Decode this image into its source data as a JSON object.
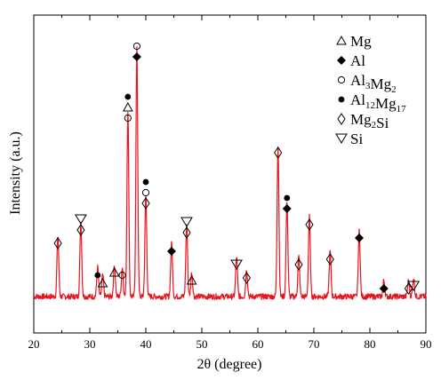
{
  "chart_data": {
    "type": "line",
    "xlabel": "2θ (degree)",
    "ylabel": "Intensity (a.u.)",
    "xlim": [
      20,
      90
    ],
    "x_ticks": [
      "20",
      "30",
      "40",
      "50",
      "60",
      "70",
      "80",
      "90"
    ],
    "y_ticks_shown": false,
    "series_color": "#e8141e",
    "baseline_intensity": 0.06,
    "peaks": [
      {
        "x": 24.3,
        "intensity": 0.23
      },
      {
        "x": 28.4,
        "intensity": 0.28
      },
      {
        "x": 31.4,
        "intensity": 0.11
      },
      {
        "x": 32.3,
        "intensity": 0.08
      },
      {
        "x": 34.4,
        "intensity": 0.12
      },
      {
        "x": 35.8,
        "intensity": 0.11
      },
      {
        "x": 36.8,
        "intensity": 0.7
      },
      {
        "x": 38.4,
        "intensity": 0.93
      },
      {
        "x": 40.0,
        "intensity": 0.38
      },
      {
        "x": 44.6,
        "intensity": 0.2
      },
      {
        "x": 47.3,
        "intensity": 0.27
      },
      {
        "x": 48.2,
        "intensity": 0.09
      },
      {
        "x": 56.2,
        "intensity": 0.15
      },
      {
        "x": 58.0,
        "intensity": 0.1
      },
      {
        "x": 63.6,
        "intensity": 0.57
      },
      {
        "x": 65.2,
        "intensity": 0.36
      },
      {
        "x": 67.3,
        "intensity": 0.15
      },
      {
        "x": 69.2,
        "intensity": 0.3
      },
      {
        "x": 72.9,
        "intensity": 0.17
      },
      {
        "x": 78.1,
        "intensity": 0.25
      },
      {
        "x": 82.5,
        "intensity": 0.06
      },
      {
        "x": 86.9,
        "intensity": 0.06
      },
      {
        "x": 87.8,
        "intensity": 0.07
      }
    ],
    "legend_position": "top-right",
    "legend": [
      {
        "symbol": "open-triangle",
        "text": "Mg"
      },
      {
        "symbol": "filled-diamond",
        "text": "Al"
      },
      {
        "symbol": "open-circle",
        "text": "Al",
        "sub1": "3",
        "mid": "Mg",
        "sub2": "2"
      },
      {
        "symbol": "filled-circle",
        "text": "Al",
        "sub1": "12",
        "mid": "Mg",
        "sub2": "17"
      },
      {
        "symbol": "open-diamond",
        "text": "Mg",
        "sub1": "2",
        "mid": "Si"
      },
      {
        "symbol": "open-inverted-triangle",
        "text": "Si"
      }
    ],
    "annotations": [
      {
        "x": 24.3,
        "symbols": [
          "open-diamond"
        ]
      },
      {
        "x": 28.4,
        "symbols": [
          "open-inverted-triangle",
          "open-diamond"
        ]
      },
      {
        "x": 31.4,
        "symbols": [
          "filled-circle"
        ]
      },
      {
        "x": 32.3,
        "symbols": [
          "open-triangle"
        ]
      },
      {
        "x": 34.4,
        "symbols": [
          "open-triangle"
        ]
      },
      {
        "x": 35.8,
        "symbols": [
          "open-circle"
        ]
      },
      {
        "x": 36.8,
        "symbols": [
          "filled-circle",
          "open-triangle",
          "open-circle"
        ]
      },
      {
        "x": 38.4,
        "symbols": [
          "open-circle",
          "filled-diamond"
        ]
      },
      {
        "x": 40.0,
        "symbols": [
          "filled-circle",
          "open-circle",
          "open-diamond"
        ]
      },
      {
        "x": 44.6,
        "symbols": [
          "filled-diamond"
        ]
      },
      {
        "x": 47.3,
        "symbols": [
          "open-inverted-triangle",
          "open-diamond"
        ]
      },
      {
        "x": 48.2,
        "symbols": [
          "open-triangle"
        ]
      },
      {
        "x": 56.2,
        "symbols": [
          "open-inverted-triangle"
        ]
      },
      {
        "x": 58.0,
        "symbols": [
          "open-diamond"
        ]
      },
      {
        "x": 63.6,
        "symbols": [
          "open-diamond"
        ]
      },
      {
        "x": 65.2,
        "symbols": [
          "filled-circle",
          "filled-diamond"
        ]
      },
      {
        "x": 67.3,
        "symbols": [
          "open-diamond"
        ]
      },
      {
        "x": 69.2,
        "symbols": [
          "open-diamond"
        ]
      },
      {
        "x": 72.9,
        "symbols": [
          "open-diamond"
        ]
      },
      {
        "x": 78.1,
        "symbols": [
          "filled-diamond"
        ]
      },
      {
        "x": 82.5,
        "symbols": [
          "filled-diamond"
        ]
      },
      {
        "x": 86.9,
        "symbols": [
          "open-diamond"
        ]
      },
      {
        "x": 87.8,
        "symbols": [
          "open-inverted-triangle"
        ]
      }
    ]
  }
}
